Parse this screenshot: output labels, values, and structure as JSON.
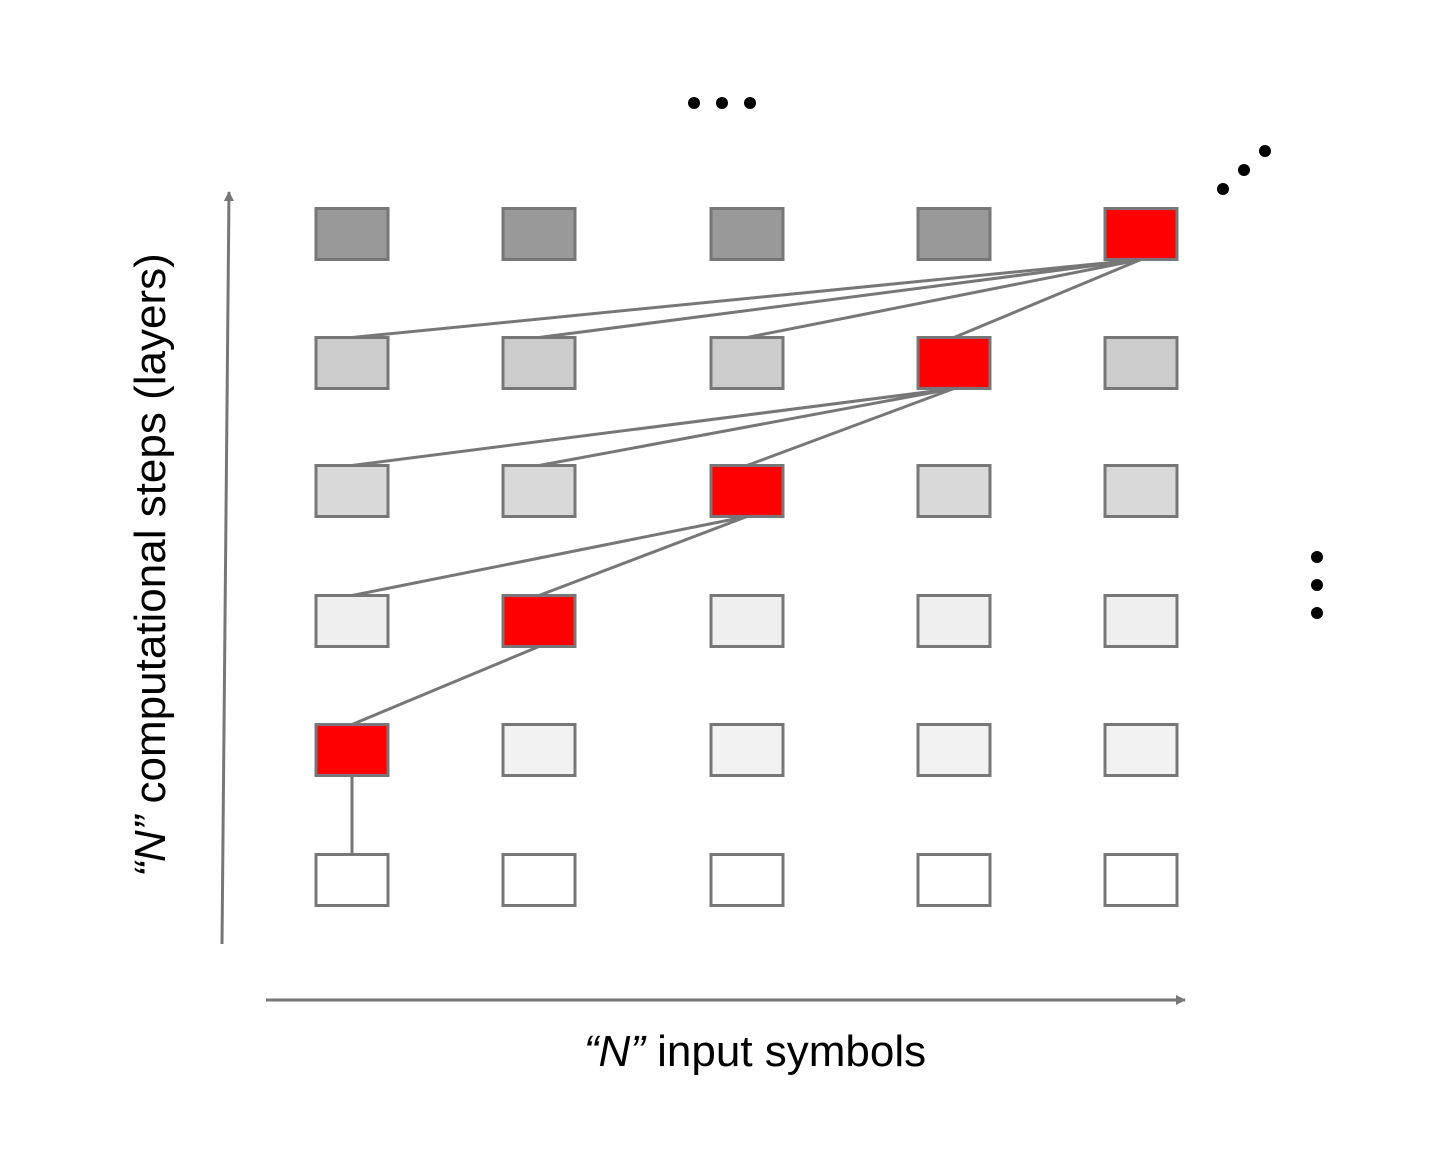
{
  "diagram": {
    "x_axis_label": {
      "quoted": "“N”",
      "rest": " input symbols"
    },
    "y_axis_label": {
      "quoted": "“N”",
      "rest": " computational steps (layers)"
    },
    "grid": {
      "rows": 6,
      "cols": 5,
      "row_fills_bottom_to_top": [
        "#ffffff",
        "#f2f2f2",
        "#efefef",
        "#d9d9d9",
        "#cccccc",
        "#999999"
      ],
      "highlight_color": "#ff0000",
      "stroke_color": "#777777",
      "highlighted_cells": [
        {
          "row": 1,
          "col": 0
        },
        {
          "row": 2,
          "col": 1
        },
        {
          "row": 3,
          "col": 2
        },
        {
          "row": 4,
          "col": 3
        },
        {
          "row": 5,
          "col": 4
        }
      ]
    },
    "connections": [
      {
        "from": {
          "row": 0,
          "col": 0
        },
        "to": {
          "row": 1,
          "col": 0
        }
      },
      {
        "from": {
          "row": 1,
          "col": 0
        },
        "to": {
          "row": 2,
          "col": 1
        }
      },
      {
        "from": {
          "row": 2,
          "col": 0
        },
        "to": {
          "row": 3,
          "col": 2
        }
      },
      {
        "from": {
          "row": 2,
          "col": 1
        },
        "to": {
          "row": 3,
          "col": 2
        }
      },
      {
        "from": {
          "row": 3,
          "col": 0
        },
        "to": {
          "row": 4,
          "col": 3
        }
      },
      {
        "from": {
          "row": 3,
          "col": 1
        },
        "to": {
          "row": 4,
          "col": 3
        }
      },
      {
        "from": {
          "row": 3,
          "col": 2
        },
        "to": {
          "row": 4,
          "col": 3
        }
      },
      {
        "from": {
          "row": 4,
          "col": 0
        },
        "to": {
          "row": 5,
          "col": 4
        }
      },
      {
        "from": {
          "row": 4,
          "col": 1
        },
        "to": {
          "row": 5,
          "col": 4
        }
      },
      {
        "from": {
          "row": 4,
          "col": 2
        },
        "to": {
          "row": 5,
          "col": 4
        }
      },
      {
        "from": {
          "row": 4,
          "col": 3
        },
        "to": {
          "row": 5,
          "col": 4
        }
      }
    ],
    "continuation_marks": [
      "top",
      "top-right",
      "right"
    ]
  }
}
